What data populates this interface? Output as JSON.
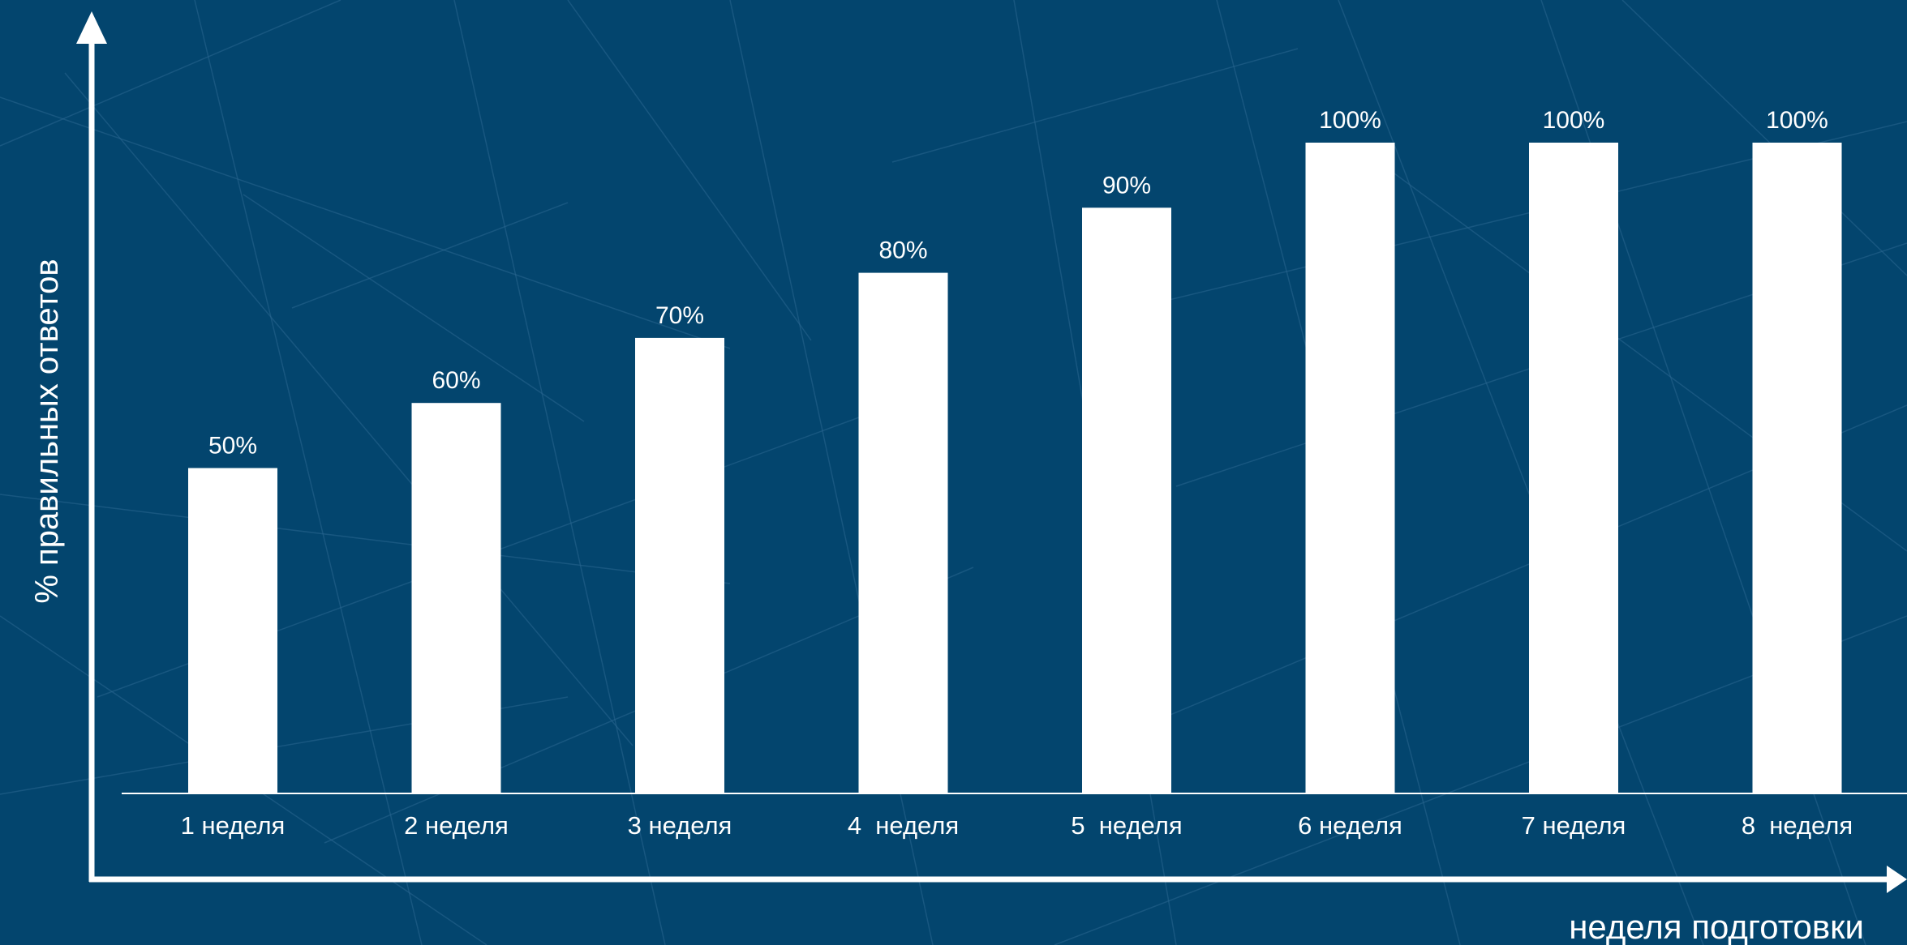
{
  "colors": {
    "background": "#03456e",
    "bar": "#ffffff",
    "axis": "#ffffff",
    "text": "#ffffff",
    "background_lines": "#2a6690"
  },
  "chart_data": {
    "type": "bar",
    "categories": [
      "1 неделя",
      "2 неделя",
      "3 неделя",
      "4  неделя",
      "5  неделя",
      "6 неделя",
      "7 неделя",
      "8  неделя"
    ],
    "values": [
      50,
      60,
      70,
      80,
      90,
      100,
      100,
      100
    ],
    "data_labels": [
      "50%",
      "60%",
      "70%",
      "80%",
      "90%",
      "100%",
      "100%",
      "100%"
    ],
    "title": "",
    "xlabel": "неделя подготовки",
    "ylabel": "% правильных ответов",
    "ylim": [
      0,
      100
    ],
    "grid": false,
    "legend": "none",
    "axes_style": "arrows"
  }
}
